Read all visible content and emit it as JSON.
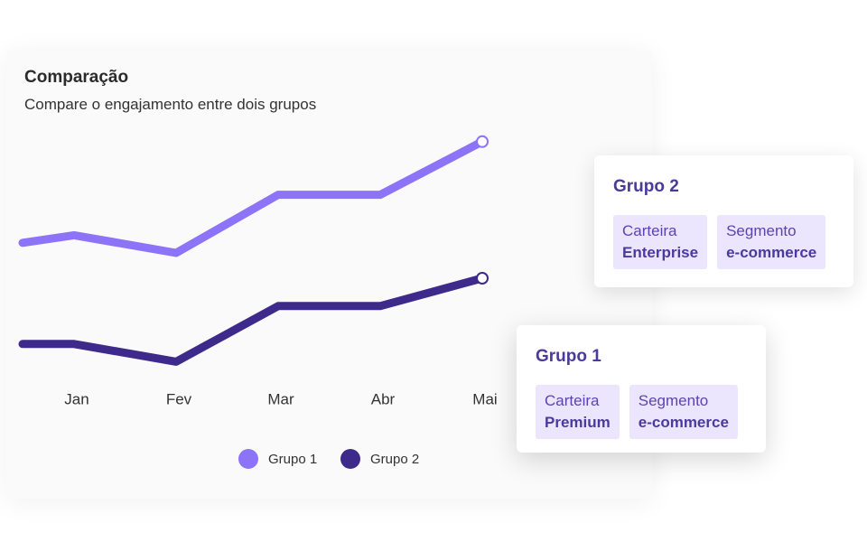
{
  "chart_data": {
    "type": "line",
    "title": "Comparação",
    "subtitle": "Compare o engajamento entre dois grupos",
    "categories": [
      null,
      "Jan",
      "Fev",
      "Mar",
      "Abr",
      "Mai"
    ],
    "series": [
      {
        "name": "Grupo 1",
        "color": "#8c73f7",
        "values": [
          54,
          57,
          50,
          73,
          73,
          94
        ]
      },
      {
        "name": "Grupo 2",
        "color": "#3d2a8a",
        "values": [
          14,
          14,
          7,
          29,
          29,
          40
        ]
      }
    ],
    "ylim": [
      0,
      100
    ]
  },
  "cards": [
    {
      "title": "Grupo 2",
      "tags": [
        {
          "label": "Carteira",
          "value": "Enterprise"
        },
        {
          "label": "Segmento",
          "value": "e-commerce"
        }
      ]
    },
    {
      "title": "Grupo 1",
      "tags": [
        {
          "label": "Carteira",
          "value": "Premium"
        },
        {
          "label": "Segmento",
          "value": "e-commerce"
        }
      ]
    }
  ]
}
